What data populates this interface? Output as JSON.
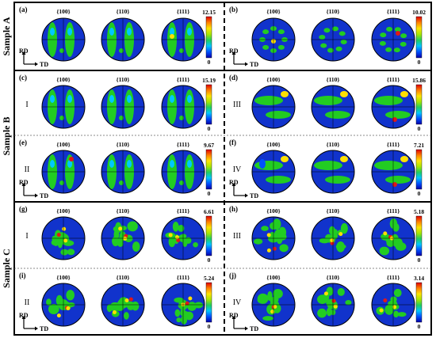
{
  "sample_labels": [
    "Sample A",
    "Sample B",
    "Sample C"
  ],
  "planes": [
    "{100}",
    "{110}",
    "{111}"
  ],
  "axes": {
    "rd": "RD",
    "td": "TD"
  },
  "colorbar": {
    "min_label": "0",
    "colors": [
      "#0000a8",
      "#0050ff",
      "#00c8ff",
      "#20d060",
      "#a8e800",
      "#ffe400",
      "#ff8000",
      "#e00000"
    ]
  },
  "figure_colors": {
    "background_blue": "#1133cc",
    "high": "#e01818",
    "mid": "#ffe000",
    "green": "#22cc22",
    "frame": "#000000"
  },
  "panels": [
    {
      "id": "a",
      "label": "(a)",
      "max": "12.15",
      "sub": "",
      "show_axes": true,
      "pattern": "columns"
    },
    {
      "id": "b",
      "label": "(b)",
      "max": "10.02",
      "sub": "",
      "show_axes": true,
      "pattern": "rings"
    },
    {
      "id": "c",
      "label": "(c)",
      "max": "15.19",
      "sub": "I",
      "show_axes": false,
      "pattern": "columns"
    },
    {
      "id": "d",
      "label": "(d)",
      "max": "15.86",
      "sub": "III",
      "show_axes": false,
      "pattern": "bands"
    },
    {
      "id": "e",
      "label": "(e)",
      "max": "9.67",
      "sub": "II",
      "show_axes": true,
      "pattern": "columns"
    },
    {
      "id": "f",
      "label": "(f)",
      "max": "7.21",
      "sub": "IV",
      "show_axes": true,
      "pattern": "bands"
    },
    {
      "id": "g",
      "label": "(g)",
      "max": "6.61",
      "sub": "I",
      "show_axes": false,
      "pattern": "blobs"
    },
    {
      "id": "h",
      "label": "(h)",
      "max": "5.18",
      "sub": "III",
      "show_axes": false,
      "pattern": "blobs"
    },
    {
      "id": "i",
      "label": "(i)",
      "max": "5.24",
      "sub": "II",
      "show_axes": true,
      "pattern": "blobs"
    },
    {
      "id": "j",
      "label": "(j)",
      "max": "3.14",
      "sub": "IV",
      "show_axes": true,
      "pattern": "blobs"
    }
  ]
}
